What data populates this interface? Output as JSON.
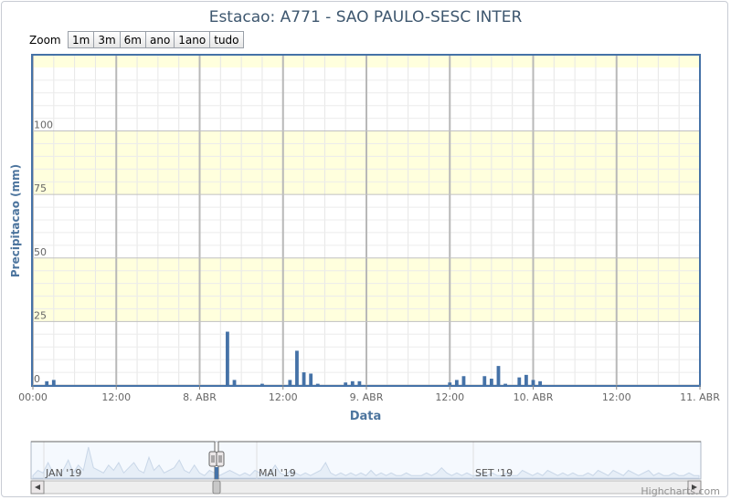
{
  "title": "Estacao: A771 - SAO PAULO-SESC INTER",
  "zoom": {
    "label": "Zoom",
    "buttons": [
      "1m",
      "3m",
      "6m",
      "ano",
      "1ano",
      "tudo"
    ]
  },
  "credit": "Highcharts.com",
  "navigator": {
    "labels": [
      "JAN '19",
      "MAI '19",
      "SET '19"
    ]
  },
  "colors": {
    "bar": "#4572a7",
    "band": "#ffffdd",
    "axis_title": "#4d759e",
    "nav_line": "#c9d7e8"
  },
  "chart_data": {
    "type": "bar",
    "title": "Estacao: A771 - SAO PAULO-SESC INTER",
    "xlabel": "Data",
    "ylabel": "Precipitacao (mm)",
    "x_unit": "hours since 7 Abr 00:00",
    "xlim": [
      0,
      96
    ],
    "ylim": [
      0,
      130
    ],
    "yticks": [
      0,
      25,
      50,
      75,
      100
    ],
    "xticks": [
      {
        "t": 0,
        "label": "00:00"
      },
      {
        "t": 12,
        "label": "12:00"
      },
      {
        "t": 24,
        "label": "8. ABR"
      },
      {
        "t": 36,
        "label": "12:00"
      },
      {
        "t": 48,
        "label": "9. ABR"
      },
      {
        "t": 60,
        "label": "12:00"
      },
      {
        "t": 72,
        "label": "10. ABR"
      },
      {
        "t": 84,
        "label": "12:00"
      },
      {
        "t": 96,
        "label": "11. ABR"
      }
    ],
    "x": [
      2,
      3,
      28,
      29,
      33,
      37,
      38,
      39,
      40,
      41,
      45,
      46,
      47,
      60,
      61,
      62,
      65,
      66,
      67,
      68,
      70,
      71,
      72,
      73
    ],
    "values": [
      1.5,
      2,
      21,
      2,
      0.5,
      2,
      13.5,
      5,
      4.5,
      0.5,
      1,
      1.5,
      1.5,
      1,
      2,
      3.5,
      3.5,
      2.5,
      7.5,
      0.5,
      3,
      4,
      2,
      1.5
    ],
    "grid": true,
    "legend": "none",
    "navigator_series": [
      1,
      3,
      2,
      6,
      2,
      1,
      3,
      7,
      2,
      5,
      3,
      12,
      4,
      3,
      2,
      5,
      3,
      6,
      2,
      4,
      6,
      3,
      2,
      8,
      3,
      5,
      2,
      3,
      4,
      7,
      3,
      2,
      5,
      2,
      1,
      3,
      2,
      1,
      2,
      3,
      2,
      1,
      2,
      1,
      3,
      2,
      1,
      2,
      5,
      2,
      1,
      3,
      2,
      1,
      2,
      1,
      2,
      3,
      6,
      2,
      1,
      2,
      1,
      2,
      1,
      2,
      1,
      3,
      1,
      2,
      1,
      2,
      1,
      1,
      2,
      1,
      1,
      1,
      2,
      1,
      2,
      4,
      2,
      1,
      2,
      1,
      2,
      1,
      1,
      2,
      1,
      2,
      1,
      1,
      2,
      1,
      1,
      3,
      2,
      1,
      2,
      1,
      3,
      2,
      1,
      2,
      1,
      2,
      1,
      1,
      2,
      1,
      3,
      2,
      1,
      3,
      2,
      1,
      3,
      2,
      1,
      2,
      3,
      1,
      2,
      1,
      1,
      2,
      1,
      1,
      2,
      1,
      1
    ]
  }
}
